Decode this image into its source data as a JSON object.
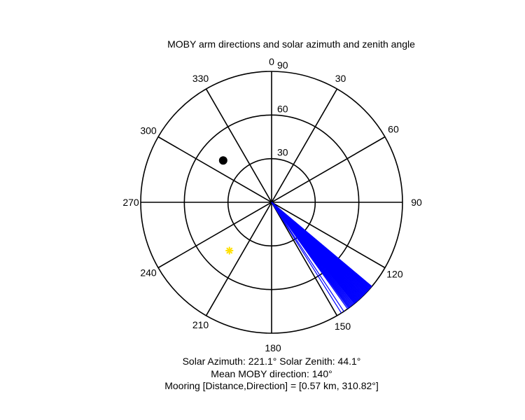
{
  "chart_data": {
    "type": "polar",
    "title": "MOBY arm directions and solar azimuth and zenith angle",
    "angular_ticks": [
      0,
      30,
      60,
      90,
      120,
      150,
      180,
      210,
      240,
      270,
      300,
      330
    ],
    "angular_tick_labels": [
      "0",
      "30",
      "60",
      "90",
      "120",
      "150",
      "180",
      "210",
      "240",
      "270",
      "300",
      "330"
    ],
    "radial_ticks": [
      30,
      60,
      90
    ],
    "radial_tick_labels": [
      "30",
      "60",
      "90"
    ],
    "radial_max": 90,
    "direction": "clockwise, 0 at top",
    "arm_lines": {
      "color": "#0000ff",
      "radius": 90,
      "directions_deg": [
        144.5,
        144.0,
        143.6,
        143.2,
        142.8,
        142.4,
        142.0,
        141.6,
        141.2,
        140.8,
        140.5,
        140.2,
        139.9,
        139.6,
        139.3,
        139.0,
        138.7,
        138.4,
        138.1,
        137.8,
        137.5,
        137.2,
        136.9,
        136.6,
        136.3,
        136.0,
        135.7,
        135.4,
        135.1,
        134.8,
        134.5,
        134.2,
        133.9,
        133.6,
        133.3,
        133.0,
        132.7,
        132.4,
        132.1,
        131.8,
        131.5,
        131.2,
        130.9,
        130.6,
        130.3,
        130.0,
        146.5,
        147.8
      ]
    },
    "sun_marker": {
      "azimuth": 221.1,
      "zenith": 44.1,
      "color": "#ffe000",
      "symbol": "asterisk"
    },
    "mooring_marker": {
      "direction": 310.82,
      "radius": 44,
      "color": "#000000",
      "symbol": "dot"
    }
  },
  "captions": {
    "line1": "Solar Azimuth: 221.1°   Solar Zenith: 44.1°",
    "line2": "Mean MOBY direction: 140°",
    "line3": "Mooring [Distance,Direction] = [0.57 km, 310.82°]"
  }
}
